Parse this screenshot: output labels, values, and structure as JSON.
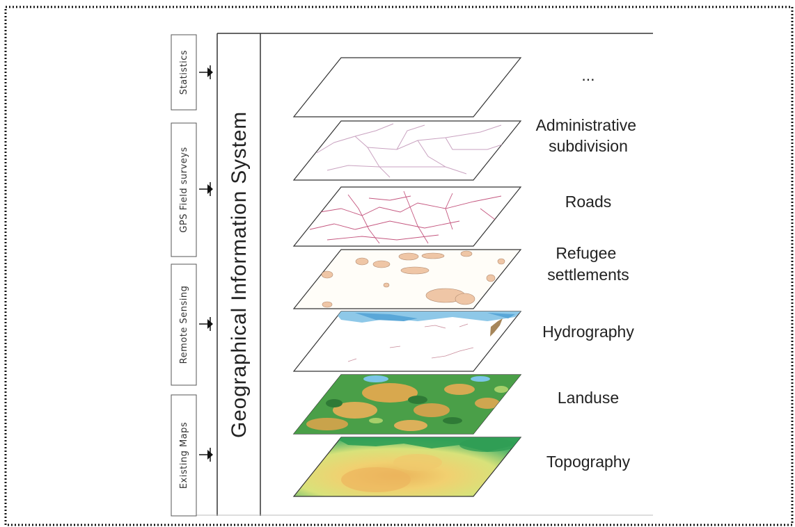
{
  "diagram": {
    "system_title": "Geographical Information System",
    "data_sources": [
      {
        "label": "Statistics"
      },
      {
        "label": "GPS Field surveys"
      },
      {
        "label": "Remote Sensing"
      },
      {
        "label": "Existing Maps"
      }
    ],
    "layers": [
      {
        "key": "other",
        "label_lines": [
          "..."
        ]
      },
      {
        "key": "admin",
        "label_lines": [
          "Administrative",
          "subdivision"
        ]
      },
      {
        "key": "roads",
        "label_lines": [
          "Roads"
        ]
      },
      {
        "key": "refugee",
        "label_lines": [
          "Refugee",
          "settlements"
        ]
      },
      {
        "key": "hydro",
        "label_lines": [
          "Hydrography"
        ]
      },
      {
        "key": "landuse",
        "label_lines": [
          "Landuse"
        ]
      },
      {
        "key": "topo",
        "label_lines": [
          "Topography"
        ]
      }
    ]
  }
}
